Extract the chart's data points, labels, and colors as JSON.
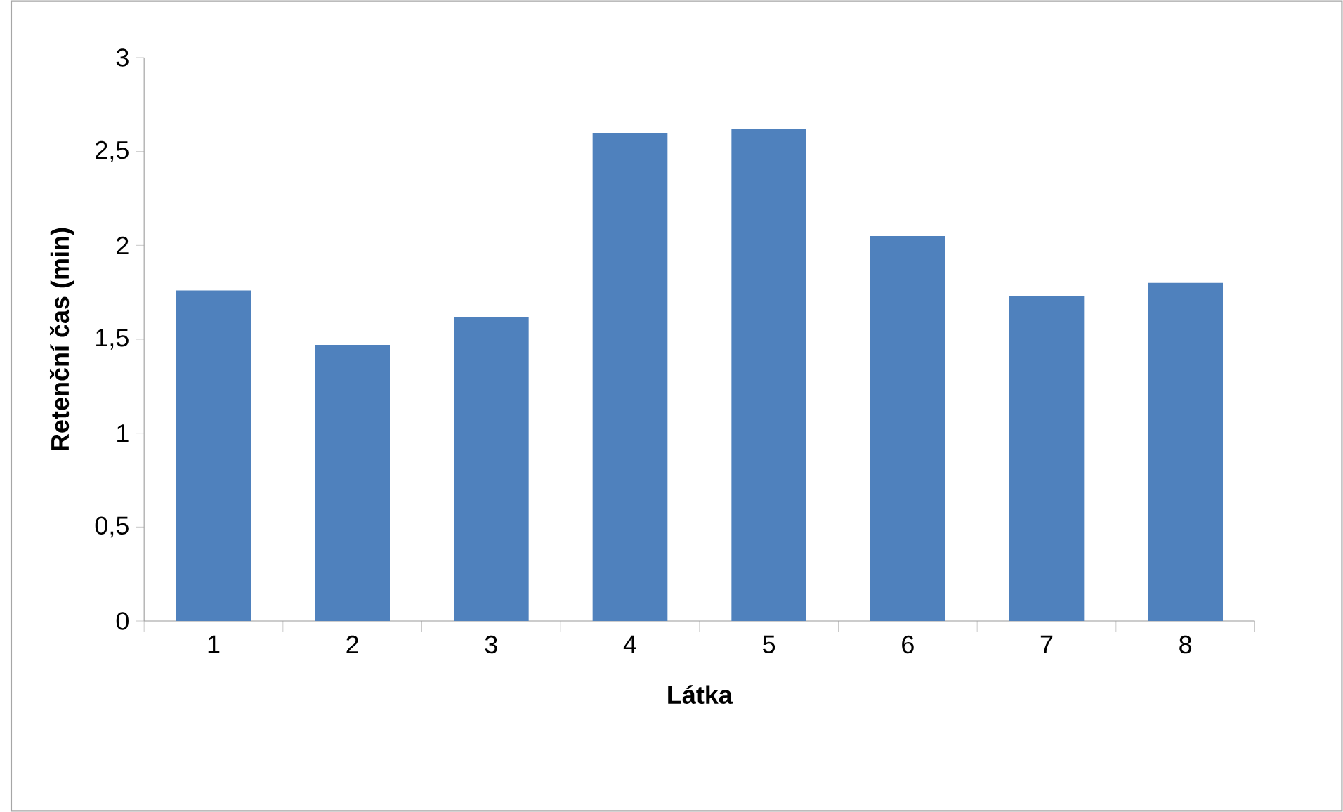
{
  "chart_data": {
    "type": "bar",
    "xlabel": "Látka",
    "ylabel": "Retenční čas (min)",
    "categories": [
      "1",
      "2",
      "3",
      "4",
      "5",
      "6",
      "7",
      "8"
    ],
    "values": [
      1.76,
      1.47,
      1.62,
      2.6,
      2.62,
      2.05,
      1.73,
      1.8
    ],
    "color": "#4f81bd",
    "ylim": [
      0,
      3
    ],
    "yticks": [
      0,
      {
        "value": 0.5,
        "label": "0,5"
      },
      1,
      {
        "value": 1.5,
        "label": "1,5"
      },
      2,
      {
        "value": 2.5,
        "label": "2,5"
      },
      3
    ],
    "grid": false
  }
}
